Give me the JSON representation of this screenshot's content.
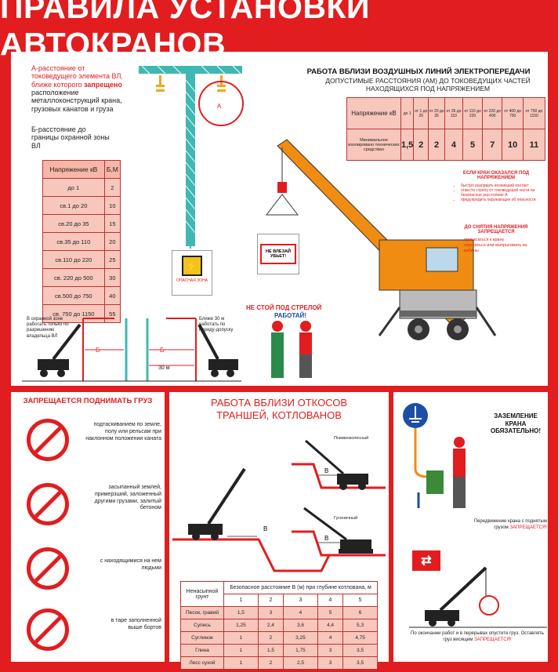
{
  "title": "ПРАВИЛА УСТАНОВКИ АВТОКРАНОВ",
  "top_left": {
    "a_def": {
      "p1": "А-расстояние от токоведущего элемента ВЛ, ближе которого ",
      "forbidden": "запрещено",
      "p2": " расположение металлоконструкций крана, грузовых канатов и груза"
    },
    "b_def": "Б-расстояние до границы охранной зоны ВЛ",
    "table": {
      "header": [
        "Напряжение кВ",
        "Б,М"
      ],
      "rows": [
        [
          "до 1",
          "2"
        ],
        [
          "св.1 до 20",
          "10"
        ],
        [
          "св.20 до 35",
          "15"
        ],
        [
          "св.35 до 110",
          "20"
        ],
        [
          "св.110 до 220",
          "25"
        ],
        [
          "св. 220 до 500",
          "30"
        ],
        [
          "св.500 до 750",
          "40"
        ],
        [
          "св. 750 до 1150",
          "55"
        ]
      ]
    },
    "sign_danger": "ОПАСНАЯ ЗОНА",
    "label_a": "А",
    "label_b": "Б",
    "dist_30": "30 м",
    "note_left": "В охранной зоне работать только по разрешению владельца ВЛ",
    "note_right": "Ближе 30 м работать по наряду-допуску"
  },
  "top_right": {
    "title": "РАБОТА ВБЛИЗИ ВОЗДУШНЫХ ЛИНИЙ ЭЛЕКТРОПЕРЕДАЧИ",
    "subtitle": "ДОПУСТИМЫЕ РАССТОЯНИЯ (АМ) ДО ТОКОВЕДУЩИХ ЧАСТЕЙ НАХОДЯЩИХСЯ ПОД НАПРЯЖЕНИЕМ",
    "table": {
      "row1_label": "Напряжение кВ",
      "row1": [
        "до 1",
        "от 1 до 20",
        "от 20 до 35",
        "от 35 до 110",
        "от 110 до 220",
        "от 220 до 400",
        "от 400 до 750",
        "от 750 до 1150"
      ],
      "row2_label": "Минимальное изолировано технических средствах",
      "row2": [
        "1,5",
        "2",
        "2",
        "4",
        "5",
        "7",
        "10",
        "11"
      ]
    },
    "sign_no_enter": "НЕ ВЛЕЗАЙ УБЬЕТ!",
    "warning_title": "ЕСЛИ КРАН ОКАЗАЛСЯ ПОД НАПРЯЖЕНИЕМ",
    "warning_items": [
      "быстро разорвать возникший контакт",
      "отвести стрелу от токоведущей части на безопасное расстояние А",
      "предупредить окружающих об опасности"
    ],
    "warning2_title": "ДО СНЯТИЯ НАПРЯЖЕНИЯ ЗАПРЕЩАЕТСЯ",
    "warning2_items": [
      "прикасаться к крану",
      "спускаться или выпрыгивать из кабины"
    ],
    "boom_warning1": "НЕ СТОЙ ПОД СТРЕЛОЙ",
    "boom_warning2": "РАБОТАЙ!"
  },
  "bottom_left": {
    "title": "ЗАПРЕЩАЕТСЯ ПОДНИМАТЬ ГРУЗ",
    "items": [
      "подтаскиванием по земле, полу или рельсам при наклонном положении каната",
      "засыпанный землей, примерзший, заложенный другими грузами, залитый бетоном",
      "с находящимися на нем людьми",
      "в таре заполненной выше бортов"
    ]
  },
  "bottom_mid": {
    "title": "РАБОТА ВБЛИЗИ ОТКОСОВ ТРАНШЕЙ, КОТЛОВАНОВ",
    "label_pneumo": "Пневмоколесный",
    "label_track": "Гусеничный",
    "label_b": "В",
    "table": {
      "h1": "Ненасыпной грунт",
      "h2": "Безопасное расстояние В (м) при глубине котлована, м",
      "depths": [
        "1",
        "2",
        "3",
        "4",
        "5"
      ],
      "rows": [
        [
          "Песок, гравий",
          "1,5",
          "3",
          "4",
          "5",
          "6"
        ],
        [
          "Супесь",
          "1,25",
          "2,4",
          "3,6",
          "4,4",
          "5,3"
        ],
        [
          "Суглинок",
          "1",
          "2",
          "3,25",
          "4",
          "4,75"
        ],
        [
          "Глина",
          "1",
          "1,5",
          "1,75",
          "3",
          "3,5"
        ],
        [
          "Лесс сухой",
          "1",
          "2",
          "2,5",
          "3",
          "3,5"
        ]
      ]
    }
  },
  "bottom_right": {
    "ground_title": "ЗАЗЕМЛЕНИЕ КРАНА ОБЯЗАТЕЛЬНО!",
    "move_note": "Передвижение крана с поднятым грузом ",
    "move_forbidden": "ЗАПРЕЩАЕТСЯ!",
    "end_note": "По окончании работ и в перерывах опустите груз. Оставлять груз висящим ",
    "end_forbidden": "ЗАПРЕЩАЕТСЯ!"
  },
  "colors": {
    "brand_red": "#e11d1f",
    "table_pink": "#f8c7bc",
    "crane_orange": "#f08c12",
    "tower_teal": "#3fb8b4"
  }
}
